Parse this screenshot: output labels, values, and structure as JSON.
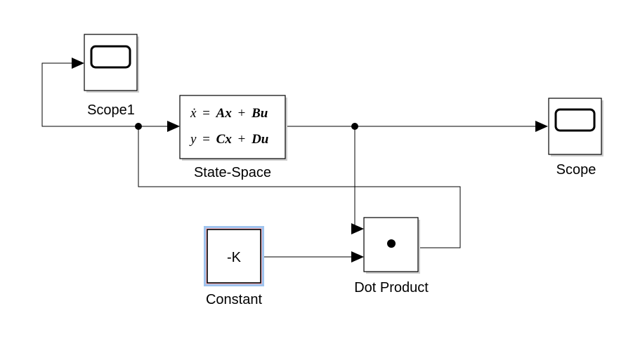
{
  "blocks": {
    "scope1": {
      "label": "Scope1"
    },
    "state_space": {
      "label": "State-Space",
      "eq1": {
        "lhs": "ẋ",
        "rhs_a": "Ax",
        "rhs_b": "Bu"
      },
      "eq2": {
        "lhs": "y",
        "rhs_a": "Cx",
        "rhs_b": "Du"
      },
      "equals": "=",
      "plus": "+"
    },
    "scope": {
      "label": "Scope"
    },
    "constant": {
      "label": "Constant",
      "value": "-K"
    },
    "dot_product": {
      "label": "Dot Product",
      "symbol": "•"
    }
  },
  "colors": {
    "selection_outer": "#9ec3ee",
    "selection_inner": "#f3b8c4",
    "shadow": "#cfcfcf"
  }
}
